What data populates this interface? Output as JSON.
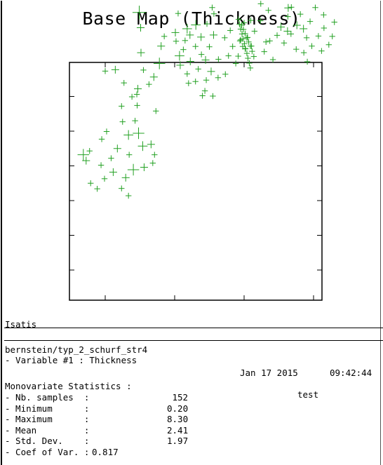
{
  "title": "Base Map (Thickness)",
  "chart_data": {
    "type": "scatter",
    "title": "Base Map (Thickness)",
    "xlabel": "",
    "ylabel": "",
    "marker": "plus",
    "marker_size_encodes": "Thickness",
    "color": "#22a022",
    "grid": false,
    "points": [
      [
        1.58,
        9.32,
        2
      ],
      [
        1.39,
        9.08,
        2
      ],
      [
        1.0,
        8.52,
        2
      ],
      [
        0.98,
        7.42,
        6
      ],
      [
        1.02,
        6.98,
        3
      ],
      [
        1.7,
        6.73,
        2
      ],
      [
        2.61,
        7.06,
        4
      ],
      [
        2.1,
        7.39,
        2
      ],
      [
        1.61,
        6.45,
        3
      ],
      [
        1.03,
        6.26,
        3
      ],
      [
        0.29,
        5.77,
        3
      ],
      [
        0.54,
        5.39,
        2
      ],
      [
        0.94,
        5.22,
        3
      ],
      [
        1.26,
        5.35,
        2
      ],
      [
        1.4,
        5.56,
        3
      ],
      [
        1.56,
        5.95,
        5
      ],
      [
        1.1,
        5.76,
        2
      ],
      [
        0.91,
        5.06,
        2
      ],
      [
        0.92,
        4.74,
        2
      ],
      [
        0.47,
        4.72,
        2
      ],
      [
        0.5,
        4.27,
        2
      ],
      [
        0.04,
        3.99,
        2
      ],
      [
        -0.1,
        3.77,
        2
      ],
      [
        -0.45,
        3.43,
        2
      ],
      [
        -0.63,
        3.32,
        5
      ],
      [
        -0.12,
        3.02,
        2
      ],
      [
        0.17,
        3.22,
        2
      ],
      [
        0.35,
        3.5,
        3
      ],
      [
        0.67,
        3.89,
        4
      ],
      [
        0.86,
        4.3,
        2
      ],
      [
        0.96,
        3.94,
        5
      ],
      [
        1.08,
        3.57,
        4
      ],
      [
        1.32,
        3.62,
        3
      ],
      [
        1.42,
        3.32,
        2
      ],
      [
        1.37,
        3.08,
        2
      ],
      [
        1.12,
        2.96,
        3
      ],
      [
        0.81,
        2.89,
        5
      ],
      [
        0.59,
        2.66,
        3
      ],
      [
        0.23,
        2.82,
        3
      ],
      [
        -0.02,
        2.63,
        2
      ],
      [
        -0.42,
        2.5,
        2
      ],
      [
        -0.55,
        3.15,
        3
      ],
      [
        -0.23,
        2.34,
        2
      ],
      [
        0.47,
        2.35,
        2
      ],
      [
        0.67,
        2.14,
        2
      ],
      [
        0.69,
        3.32,
        2
      ],
      [
        0.0,
        5.73,
        2
      ],
      [
        0.77,
        4.99,
        2
      ],
      [
        1.46,
        4.58,
        2
      ],
      [
        4.88,
        9.6,
        2
      ],
      [
        4.74,
        9.53,
        2
      ],
      [
        5.5,
        9.48,
        3
      ],
      [
        5.17,
        9.23,
        2
      ],
      [
        4.97,
        8.55,
        4
      ],
      [
        5.6,
        8.7,
        2
      ],
      [
        5.25,
        8.24,
        3
      ],
      [
        2.04,
        6.59,
        2
      ],
      [
        2.25,
        6.35,
        2
      ],
      [
        2.77,
        6.21,
        2
      ],
      [
        3.08,
        7.56,
        2
      ],
      [
        3.13,
        7.38,
        2
      ],
      [
        2.44,
        6.77,
        3
      ],
      [
        2.14,
        6.17,
        4
      ],
      [
        2.45,
        6.01,
        3
      ],
      [
        2.89,
        6.05,
        3
      ],
      [
        3.26,
        6.07,
        2
      ],
      [
        3.55,
        6.17,
        2
      ],
      [
        3.83,
        6.16,
        2
      ],
      [
        3.67,
        6.44,
        2
      ],
      [
        3.44,
        6.69,
        2
      ],
      [
        3.12,
        6.77,
        3
      ],
      [
        3.0,
        6.43,
        2
      ],
      [
        2.76,
        6.71,
        3
      ],
      [
        2.6,
        6.44,
        2
      ],
      [
        2.3,
        6.61,
        2
      ],
      [
        2.02,
        6.84,
        3
      ],
      [
        2.16,
        5.9,
        3
      ],
      [
        2.36,
        5.65,
        2
      ],
      [
        2.68,
        5.79,
        2
      ],
      [
        2.6,
        5.43,
        2
      ],
      [
        2.91,
        5.47,
        2
      ],
      [
        3.05,
        5.72,
        3
      ],
      [
        3.25,
        5.54,
        2
      ],
      [
        3.46,
        5.64,
        2
      ],
      [
        3.76,
        5.95,
        2
      ],
      [
        3.96,
        6.44,
        2
      ],
      [
        2.4,
        5.38,
        2
      ],
      [
        2.87,
        5.16,
        2
      ],
      [
        3.1,
        5.01,
        2
      ],
      [
        2.8,
        5.02,
        2
      ],
      [
        2.36,
        6.95,
        4
      ],
      [
        2.93,
        7.09,
        2
      ],
      [
        3.6,
        6.9,
        2
      ],
      [
        3.9,
        6.63,
        2
      ],
      [
        4.21,
        6.45,
        2
      ],
      [
        4.3,
        6.88,
        2
      ],
      [
        4.47,
        7.18,
        2
      ],
      [
        4.19,
        7.19,
        2
      ],
      [
        4.63,
        6.57,
        2
      ],
      [
        4.58,
        6.29,
        2
      ],
      [
        4.83,
        6.06,
        2
      ],
      [
        4.74,
        6.6,
        2
      ],
      [
        4.95,
        6.76,
        2
      ],
      [
        5.15,
        6.54,
        2
      ],
      [
        5.35,
        6.8,
        2
      ],
      [
        5.5,
        6.36,
        2
      ],
      [
        5.8,
        6.69,
        2
      ],
      [
        5.72,
        6.26,
        2
      ],
      [
        5.95,
        6.45,
        2
      ],
      [
        6.14,
        6.74,
        2
      ],
      [
        6.3,
        6.97,
        2
      ],
      [
        5.9,
        7.16,
        2
      ],
      [
        5.62,
        7.37,
        2
      ],
      [
        5.26,
        7.3,
        2
      ],
      [
        5.06,
        7.0,
        3
      ],
      [
        5.27,
        7.55,
        3
      ],
      [
        5.52,
        7.05,
        3
      ],
      [
        5.71,
        6.95,
        3
      ],
      [
        5.25,
        6.88,
        3
      ],
      [
        5.82,
        6.0,
        2
      ],
      [
        6.23,
        6.31,
        2
      ],
      [
        6.44,
        6.49,
        2
      ],
      [
        6.54,
        6.73,
        2
      ],
      [
        6.6,
        7.14,
        2
      ],
      [
        6.29,
        7.35,
        2
      ],
      [
        6.05,
        7.56,
        2
      ],
      [
        5.36,
        7.57,
        2
      ],
      [
        4.48,
        7.67,
        2
      ],
      [
        4.7,
        7.48,
        2
      ],
      [
        4.0,
        7.12,
        2
      ],
      [
        3.84,
        7.22,
        2
      ],
      [
        3.87,
        7.08,
        2
      ],
      [
        3.9,
        6.94,
        2
      ],
      [
        3.94,
        6.8,
        2
      ],
      [
        3.97,
        6.66,
        2
      ],
      [
        4.01,
        6.52,
        2
      ],
      [
        4.04,
        6.38,
        2
      ],
      [
        4.08,
        6.24,
        2
      ],
      [
        4.11,
        6.1,
        2
      ],
      [
        4.15,
        5.96,
        2
      ],
      [
        4.18,
        5.82,
        2
      ],
      [
        3.93,
        7.05,
        2
      ],
      [
        3.98,
        6.93,
        2
      ],
      [
        4.03,
        6.81,
        2
      ],
      [
        4.08,
        6.69,
        2
      ],
      [
        4.13,
        6.57,
        2
      ],
      [
        4.18,
        6.45,
        2
      ],
      [
        4.03,
        6.37,
        2
      ],
      [
        4.1,
        6.7,
        2
      ],
      [
        3.88,
        6.6,
        2
      ],
      [
        4.23,
        6.3,
        2
      ],
      [
        4.28,
        6.15,
        2
      ]
    ]
  },
  "footer": {
    "software": "Isatis",
    "file": "bernstein/typ_2_schurf_str4",
    "variable": "- Variable #1 : Thickness",
    "date": "Jan 17 2015",
    "time": "09:42:44",
    "stats_title": "Monovariate Statistics :",
    "user": "test",
    "stats": [
      {
        "label": "- Nb. samples  :",
        "value": "152"
      },
      {
        "label": "- Minimum      :",
        "value": "0.20"
      },
      {
        "label": "- Maximum      :",
        "value": "8.30"
      },
      {
        "label": "- Mean         :",
        "value": "2.41"
      },
      {
        "label": "- Std. Dev.    :",
        "value": "1.97"
      },
      {
        "label": "- Coef of Var. :",
        "value": "0.817"
      }
    ]
  }
}
